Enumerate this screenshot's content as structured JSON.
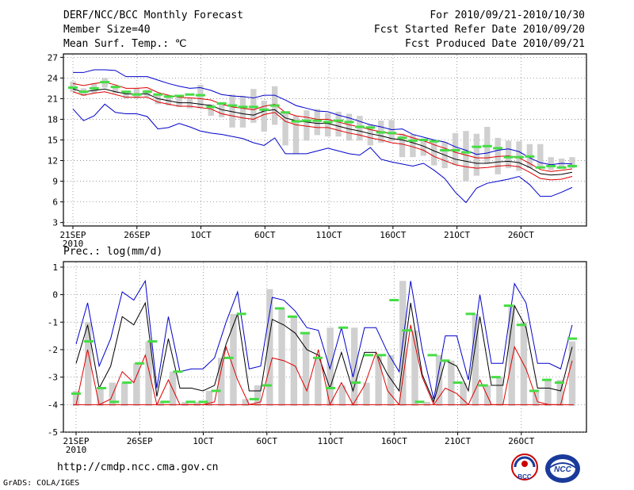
{
  "header": {
    "title": "DERF/NCC/BCC Monthly Forecast",
    "member": "Member Size=40",
    "variable": "Mean Surf. Temp.: ℃",
    "period": "For 2010/09/21-2010/10/30",
    "start": "Fcst Started Refer Date 2010/09/20",
    "produced": "Fcst Produced Date 2010/09/21"
  },
  "precip_label": "Prec.: log(mm/d)",
  "footer": {
    "url": "http://cmdp.ncc.cma.gov.cn",
    "grads": "GrADS: COLA/IGES",
    "logo1": "BCC",
    "logo2": "NCC"
  },
  "colors": {
    "max": "#0000cc",
    "min": "#0000cc",
    "mean": "#000000",
    "median": "#dd0000",
    "green": "#44dd44",
    "bar": "#d0d0d0"
  },
  "chart_data": [
    {
      "type": "line",
      "title": "Mean Surf. Temp.",
      "x_tick_labels": [
        "21SEP",
        "26SEP",
        "1OCT",
        "6OCT",
        "11OCT",
        "16OCT",
        "21OCT",
        "26OCT"
      ],
      "x_year_label": "2010",
      "x_tick_day": [
        1,
        6,
        11,
        16,
        21,
        26,
        31,
        36
      ],
      "days": 40,
      "ylim": [
        2.5,
        27.5
      ],
      "yticks": [
        3,
        6,
        9,
        12,
        15,
        18,
        21,
        24,
        27
      ],
      "series": [
        {
          "name": "max",
          "values": [
            24.8,
            24.8,
            25.2,
            25.2,
            25.1,
            24.2,
            24.2,
            24.2,
            23.7,
            23.2,
            22.8,
            22.5,
            22.6,
            22.2,
            21.6,
            21.4,
            21.3,
            21.1,
            21.5,
            21.5,
            20.8,
            20.0,
            19.6,
            19.2,
            19.1,
            18.6,
            18.2,
            17.7,
            17.2,
            16.9,
            16.5,
            16.6,
            15.8,
            15.4,
            15.0,
            14.7,
            14.0,
            13.5,
            12.9,
            13.1,
            13.5,
            13.7,
            13.3,
            12.4,
            11.7,
            11.4,
            11.6,
            11.5
          ]
        },
        {
          "name": "upper",
          "values": [
            23.2,
            22.9,
            23.2,
            23.4,
            23.0,
            22.5,
            22.5,
            22.6,
            21.9,
            21.5,
            21.2,
            21.1,
            21.0,
            20.8,
            20.2,
            19.8,
            19.6,
            19.4,
            19.9,
            20.2,
            19.0,
            18.5,
            18.3,
            18.0,
            18.0,
            17.6,
            17.2,
            16.9,
            16.5,
            16.2,
            15.9,
            15.8,
            15.3,
            14.9,
            14.3,
            13.8,
            13.2,
            12.8,
            12.4,
            12.4,
            12.6,
            12.7,
            12.4,
            11.6,
            10.7,
            10.4,
            10.6,
            10.8
          ]
        },
        {
          "name": "mean",
          "values": [
            22.4,
            22.0,
            22.2,
            22.4,
            22.0,
            21.7,
            21.7,
            21.7,
            21.0,
            20.7,
            20.4,
            20.4,
            20.2,
            20.0,
            19.4,
            19.1,
            18.8,
            18.6,
            19.2,
            19.4,
            18.2,
            17.8,
            17.6,
            17.4,
            17.4,
            17.0,
            16.6,
            16.3,
            15.9,
            15.6,
            15.2,
            15.0,
            14.6,
            14.1,
            13.4,
            12.8,
            12.2,
            11.9,
            11.6,
            11.6,
            11.8,
            11.9,
            11.7,
            11.0,
            10.1,
            9.9,
            10.0,
            10.3
          ]
        },
        {
          "name": "median",
          "values": [
            22.0,
            21.5,
            21.8,
            22.0,
            21.6,
            21.2,
            21.2,
            21.2,
            20.5,
            20.2,
            19.9,
            19.9,
            19.7,
            19.5,
            18.8,
            18.5,
            18.2,
            18.0,
            18.7,
            19.0,
            17.7,
            17.2,
            17.0,
            16.8,
            16.8,
            16.4,
            16.0,
            15.7,
            15.3,
            15.0,
            14.6,
            14.4,
            14.0,
            13.5,
            12.6,
            12.0,
            11.4,
            11.1,
            10.9,
            11.0,
            11.2,
            11.3,
            11.1,
            10.3,
            9.4,
            9.2,
            9.3,
            9.7
          ]
        },
        {
          "name": "min",
          "values": [
            19.5,
            17.8,
            18.5,
            20.2,
            19.0,
            18.8,
            18.8,
            18.4,
            16.6,
            16.8,
            17.4,
            16.9,
            16.3,
            16.0,
            15.8,
            15.5,
            15.2,
            14.6,
            14.2,
            15.3,
            13.0,
            13.0,
            13.0,
            13.4,
            13.8,
            13.4,
            13.0,
            12.8,
            13.9,
            12.2,
            11.8,
            11.5,
            11.2,
            11.6,
            10.6,
            9.4,
            7.4,
            5.9,
            8.0,
            8.7,
            9.0,
            9.3,
            9.7,
            8.5,
            6.8,
            6.8,
            7.4,
            8.1
          ]
        }
      ],
      "green_markers": [
        22.6,
        22.0,
        22.5,
        23.4,
        22.7,
        22.0,
        21.6,
        22.0,
        21.6,
        21.3,
        21.4,
        21.6,
        21.5,
        19.8,
        20.3,
        20.0,
        19.8,
        19.8,
        19.4,
        20.0,
        19.0,
        17.7,
        17.8,
        17.8,
        17.6,
        17.8,
        17.6,
        16.9,
        16.8,
        16.1,
        16.0,
        15.3,
        14.9,
        15.0,
        14.8,
        13.5,
        13.5,
        13.2,
        14.0,
        14.1,
        13.8,
        12.5,
        12.5,
        12.6,
        11.0,
        11.2,
        11.0,
        11.2
      ],
      "bars": [
        [
          22.0,
          23.5
        ],
        [
          21.4,
          22.5
        ],
        [
          21.8,
          23.2
        ],
        [
          22.6,
          24.0
        ],
        [
          21.8,
          22.9
        ],
        [
          21.0,
          22.1
        ],
        [
          21.0,
          22.5
        ],
        [
          21.3,
          22.3
        ],
        [
          20.2,
          21.7
        ],
        [
          20.0,
          21.2
        ],
        [
          19.8,
          21.4
        ],
        [
          19.6,
          21.0
        ],
        [
          19.6,
          23.0
        ],
        [
          18.5,
          20.2
        ],
        [
          18.3,
          20.5
        ],
        [
          16.8,
          21.6
        ],
        [
          16.8,
          21.4
        ],
        [
          17.5,
          22.4
        ],
        [
          16.2,
          20.7
        ],
        [
          17.2,
          22.8
        ],
        [
          14.2,
          18.9
        ],
        [
          13.0,
          18.5
        ],
        [
          14.9,
          19.3
        ],
        [
          15.7,
          19.5
        ],
        [
          15.5,
          18.9
        ],
        [
          15.5,
          19.1
        ],
        [
          14.9,
          18.8
        ],
        [
          14.9,
          18.5
        ],
        [
          14.2,
          17.3
        ],
        [
          14.6,
          17.8
        ],
        [
          14.8,
          17.9
        ],
        [
          12.5,
          15.9
        ],
        [
          12.5,
          15.8
        ],
        [
          12.7,
          15.2
        ],
        [
          11.3,
          14.9
        ],
        [
          10.9,
          14.7
        ],
        [
          11.4,
          16.0
        ],
        [
          9.0,
          16.3
        ],
        [
          9.8,
          15.9
        ],
        [
          11.6,
          16.9
        ],
        [
          10.0,
          15.3
        ],
        [
          10.9,
          14.9
        ],
        [
          10.5,
          14.8
        ],
        [
          10.9,
          14.4
        ],
        [
          11.0,
          14.4
        ],
        [
          10.6,
          12.5
        ],
        [
          10.8,
          12.3
        ],
        [
          10.9,
          12.5
        ]
      ]
    },
    {
      "type": "line",
      "title": "Prec.: log(mm/d)",
      "x_tick_labels": [
        "21SEP",
        "26SEP",
        "1OCT",
        "6OCT",
        "11OCT",
        "16OCT",
        "21OCT",
        "26OCT"
      ],
      "x_year_label": "2010",
      "ylim": [
        -5,
        1.2
      ],
      "yticks": [
        1,
        0,
        -1,
        -2,
        -3,
        -4,
        -5
      ],
      "series": [
        {
          "name": "max",
          "values": [
            -1.8,
            -0.3,
            -2.6,
            -1.6,
            0.1,
            -0.2,
            0.5,
            -3.4,
            -0.8,
            -2.8,
            -2.7,
            -2.7,
            -2.3,
            -1.0,
            0.1,
            -2.7,
            -2.6,
            -0.1,
            -0.2,
            -0.6,
            -1.2,
            -1.3,
            -2.7,
            -1.2,
            -3.0,
            -1.2,
            -1.2,
            -2.1,
            -2.8,
            0.5,
            -2.0,
            -3.8,
            -1.5,
            -1.5,
            -3.1,
            0.0,
            -2.5,
            -2.5,
            0.4,
            -0.3,
            -2.5,
            -2.5,
            -2.7,
            -1.1
          ]
        },
        {
          "name": "mean",
          "values": [
            -2.5,
            -1.1,
            -3.4,
            -2.6,
            -0.8,
            -1.1,
            -0.3,
            -3.7,
            -1.6,
            -3.4,
            -3.4,
            -3.5,
            -3.3,
            -1.8,
            -0.7,
            -3.5,
            -3.5,
            -0.9,
            -1.1,
            -1.4,
            -2.0,
            -2.2,
            -3.4,
            -2.1,
            -3.5,
            -2.1,
            -2.1,
            -2.9,
            -3.5,
            -0.3,
            -2.9,
            -3.9,
            -2.4,
            -2.6,
            -3.5,
            -0.8,
            -3.3,
            -3.3,
            -0.4,
            -1.2,
            -3.4,
            -3.4,
            -3.5,
            -1.9
          ]
        },
        {
          "name": "median",
          "values": [
            -4.0,
            -2.0,
            -4.0,
            -3.8,
            -2.8,
            -3.2,
            -2.2,
            -4.0,
            -3.1,
            -4.0,
            -4.0,
            -4.0,
            -3.9,
            -1.9,
            -3.1,
            -4.0,
            -3.9,
            -2.3,
            -2.4,
            -2.6,
            -3.5,
            -2.0,
            -4.0,
            -3.2,
            -4.0,
            -3.3,
            -2.1,
            -3.5,
            -4.0,
            -1.1,
            -3.0,
            -4.0,
            -3.4,
            -3.6,
            -4.0,
            -3.1,
            -4.0,
            -4.0,
            -1.9,
            -2.7,
            -3.9,
            -4.0,
            -4.0,
            -2.4
          ]
        },
        {
          "name": "min",
          "values": [
            -4.0,
            -4.0,
            -4.0,
            -4.0,
            -4.0,
            -4.0,
            -4.0,
            -4.0,
            -4.0,
            -4.0,
            -4.0,
            -4.0,
            -4.0,
            -4.0,
            -4.0,
            -4.0,
            -4.0,
            -4.0,
            -4.0,
            -4.0,
            -4.0,
            -4.0,
            -4.0,
            -4.0,
            -4.0,
            -4.0,
            -3.5,
            -4.0,
            -4.0,
            -4.0,
            -4.0,
            -4.0,
            -4.0,
            -4.0,
            -4.0,
            -4.0,
            -4.0,
            -4.0,
            -4.0,
            -4.0,
            -4.0,
            -4.0,
            -4.0,
            -4.0
          ]
        },
        {
          "name": "bars",
          "values": [
            -3.5,
            -1.0,
            -3.4,
            -3.2,
            -3.2,
            -2.5,
            -1.7,
            -3.9,
            -2.8,
            -3.9,
            -3.9,
            -3.5,
            -2.3,
            -0.7,
            -3.8,
            -3.3,
            0.2,
            -0.5,
            -0.8,
            -1.4,
            -2.3,
            -1.2,
            -3.3,
            -1.2,
            -3.2,
            -2.2,
            -2.2,
            0.5,
            -1.3,
            -3.9,
            -2.2,
            -2.4,
            -3.2,
            -0.7,
            -3.3,
            -3.0,
            -0.4,
            -1.0,
            -3.5,
            -3.1,
            -3.1,
            -1.7
          ]
        },
        {
          "name": "green_markers",
          "values": [
            -3.6,
            -1.7,
            -3.4,
            -3.9,
            -3.2,
            -2.5,
            -1.7,
            -3.9,
            -2.8,
            -3.9,
            -3.9,
            -3.5,
            -2.3,
            -0.7,
            -3.8,
            -3.3,
            -0.5,
            -0.8,
            -1.4,
            -2.3,
            -3.4,
            -1.2,
            -3.2,
            -2.2,
            -2.2,
            -0.2,
            -1.3,
            -3.9,
            -2.2,
            -2.4,
            -3.2,
            -0.7,
            -3.3,
            -3.0,
            -0.4,
            -1.1,
            -3.5,
            -3.1,
            -3.2,
            -1.6
          ]
        }
      ]
    }
  ]
}
